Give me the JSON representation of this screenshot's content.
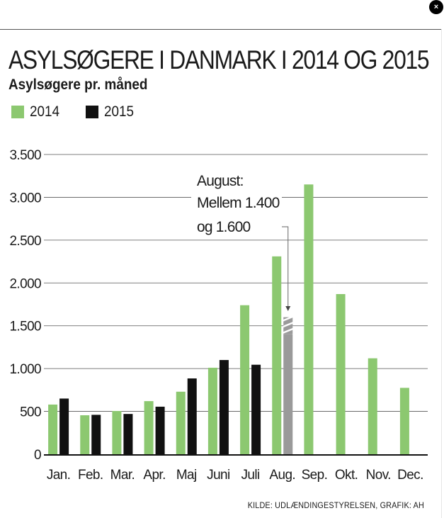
{
  "ui": {
    "close_glyph": "×"
  },
  "chart_data": {
    "type": "bar",
    "title": "ASYLSØGERE I DANMARK I 2014 OG 2015",
    "subtitle": "Asylsøgere pr. måned",
    "categories": [
      "Jan.",
      "Feb.",
      "Mar.",
      "Apr.",
      "Maj",
      "Juni",
      "Juli",
      "Aug.",
      "Sep.",
      "Okt.",
      "Nov.",
      "Dec."
    ],
    "series": [
      {
        "name": "2014",
        "color": "#8cc870",
        "values": [
          580,
          455,
          505,
          620,
          730,
          1010,
          1740,
          2310,
          3150,
          1870,
          1120,
          775
        ]
      },
      {
        "name": "2015",
        "color": "#111111",
        "values": [
          650,
          460,
          470,
          555,
          885,
          1100,
          1045,
          null,
          null,
          null,
          null,
          null
        ]
      }
    ],
    "estimate": {
      "category": "Aug.",
      "series": "2015",
      "low": 1400,
      "high": 1600,
      "color": "#9a9a9a"
    },
    "annotation": {
      "lines": [
        "August:",
        "Mellem 1.400",
        "og 1.600"
      ]
    },
    "ylim": [
      0,
      3500
    ],
    "yticks": [
      0,
      500,
      1000,
      1500,
      2000,
      2500,
      3000,
      3500
    ],
    "ytick_labels": [
      "0",
      "500",
      "1.000",
      "1.500",
      "2.000",
      "2.500",
      "3.000",
      "3.500"
    ],
    "grid": true,
    "legend_position": "top-left",
    "xlabel": "",
    "ylabel": ""
  },
  "source": "KILDE: UDLÆNDINGESTYRELSEN, GRAFIK: AH"
}
